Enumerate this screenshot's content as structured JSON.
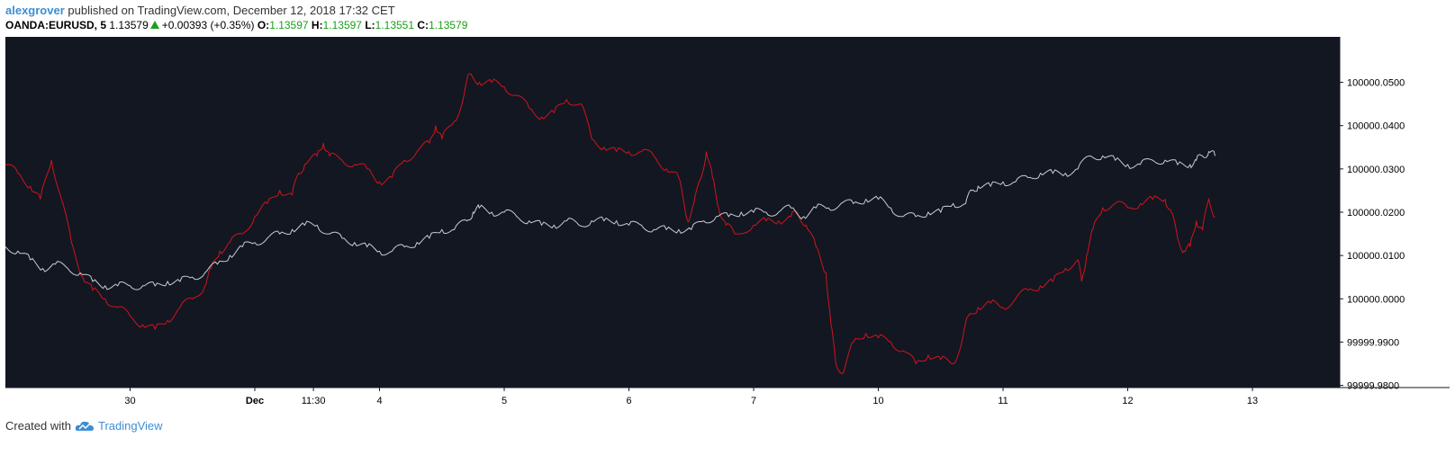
{
  "header": {
    "author": "alexgrover",
    "published_text": "published on TradingView.com, December 12, 2018 17:32 CET",
    "symbol": "OANDA:EURUSD, 5",
    "price": "1.13579",
    "change": "+0.00393 (+0.35%)",
    "o_label": "O:",
    "o_value": "1.13597",
    "h_label": "H:",
    "h_value": "1.13597",
    "l_label": "L:",
    "l_value": "1.13551",
    "c_label": "C:",
    "c_value": "1.13579"
  },
  "footer": {
    "created_with": "Created with",
    "brand": "TradingView",
    "logo_icon": "tradingview-cloud-icon"
  },
  "colors": {
    "background": "#131722",
    "red_series": "#d0141a",
    "gray_series": "#c8ccd4",
    "axis_text": "#000000",
    "up_color": "#1aa01a",
    "brand": "#3c8ed4"
  },
  "chart_data": {
    "type": "line",
    "title": "",
    "xlabel": "",
    "ylabel": "",
    "x_range": [
      -1,
      9.7
    ],
    "ylim": [
      99999.9795,
      100000.0605
    ],
    "x_ticks": [
      {
        "t": 0,
        "label": "30"
      },
      {
        "t": 1,
        "label": "Dec"
      },
      {
        "t": 1.47,
        "label": "11:30"
      },
      {
        "t": 2,
        "label": "4"
      },
      {
        "t": 3,
        "label": "5"
      },
      {
        "t": 4,
        "label": "6"
      },
      {
        "t": 5,
        "label": "7"
      },
      {
        "t": 6,
        "label": "10"
      },
      {
        "t": 7,
        "label": "11"
      },
      {
        "t": 8,
        "label": "12"
      },
      {
        "t": 9,
        "label": "13"
      }
    ],
    "y_ticks": [
      {
        "v": 100000.05,
        "label": "100000.0500"
      },
      {
        "v": 100000.04,
        "label": "100000.0400"
      },
      {
        "v": 100000.03,
        "label": "100000.0300"
      },
      {
        "v": 100000.02,
        "label": "100000.0200"
      },
      {
        "v": 100000.01,
        "label": "100000.0100"
      },
      {
        "v": 100000.0,
        "label": "100000.0000"
      },
      {
        "v": 99999.99,
        "label": "99999.9900"
      },
      {
        "v": 99999.98,
        "label": "99999.9800"
      }
    ],
    "series": [
      {
        "color": "#d0141a",
        "points": [
          [
            -1.0,
            100000.031
          ],
          [
            -0.9,
            100000.029
          ],
          [
            -0.8,
            100000.026
          ],
          [
            -0.72,
            100000.023
          ],
          [
            -0.63,
            100000.032
          ],
          [
            -0.55,
            100000.023
          ],
          [
            -0.47,
            100000.013
          ],
          [
            -0.38,
            100000.005
          ],
          [
            -0.3,
            100000.002
          ],
          [
            -0.2,
            100000.0
          ],
          [
            -0.1,
            99999.998
          ],
          [
            0.0,
            99999.996
          ],
          [
            0.1,
            99999.994
          ],
          [
            0.2,
            99999.993
          ],
          [
            0.3,
            99999.995
          ],
          [
            0.4,
            99999.998
          ],
          [
            0.5,
            100000.0
          ],
          [
            0.6,
            100000.003
          ],
          [
            0.65,
            100000.007
          ],
          [
            0.72,
            100000.011
          ],
          [
            0.8,
            100000.013
          ],
          [
            0.9,
            100000.015
          ],
          [
            1.0,
            100000.019
          ],
          [
            1.1,
            100000.022
          ],
          [
            1.2,
            100000.025
          ],
          [
            1.3,
            100000.024
          ],
          [
            1.35,
            100000.029
          ],
          [
            1.4,
            100000.031
          ],
          [
            1.5,
            100000.033
          ],
          [
            1.55,
            100000.036
          ],
          [
            1.6,
            100000.033
          ],
          [
            1.7,
            100000.032
          ],
          [
            1.8,
            100000.031
          ],
          [
            1.9,
            100000.03
          ],
          [
            2.0,
            100000.027
          ],
          [
            2.1,
            100000.028
          ],
          [
            2.2,
            100000.032
          ],
          [
            2.3,
            100000.034
          ],
          [
            2.4,
            100000.036
          ],
          [
            2.45,
            100000.04
          ],
          [
            2.5,
            100000.037
          ],
          [
            2.6,
            100000.041
          ],
          [
            2.67,
            100000.046
          ],
          [
            2.72,
            100000.052
          ],
          [
            2.8,
            100000.05
          ],
          [
            2.9,
            100000.05
          ],
          [
            3.0,
            100000.049
          ],
          [
            3.1,
            100000.047
          ],
          [
            3.2,
            100000.044
          ],
          [
            3.3,
            100000.042
          ],
          [
            3.4,
            100000.043
          ],
          [
            3.5,
            100000.046
          ],
          [
            3.62,
            100000.045
          ],
          [
            3.7,
            100000.037
          ],
          [
            3.8,
            100000.035
          ],
          [
            3.9,
            100000.034
          ],
          [
            4.0,
            100000.034
          ],
          [
            4.1,
            100000.034
          ],
          [
            4.2,
            100000.033
          ],
          [
            4.3,
            100000.03
          ],
          [
            4.4,
            100000.028
          ],
          [
            4.47,
            100000.018
          ],
          [
            4.52,
            100000.022
          ],
          [
            4.58,
            100000.028
          ],
          [
            4.62,
            100000.034
          ],
          [
            4.67,
            100000.028
          ],
          [
            4.72,
            100000.021
          ],
          [
            4.78,
            100000.017
          ],
          [
            4.85,
            100000.015
          ],
          [
            5.0,
            100000.017
          ],
          [
            5.1,
            100000.018
          ],
          [
            5.2,
            100000.018
          ],
          [
            5.3,
            100000.019
          ],
          [
            5.35,
            100000.02
          ],
          [
            5.42,
            100000.017
          ],
          [
            5.5,
            100000.012
          ],
          [
            5.58,
            100000.006
          ],
          [
            5.62,
            99999.994
          ],
          [
            5.66,
            99999.985
          ],
          [
            5.72,
            99999.983
          ],
          [
            5.8,
            99999.99
          ],
          [
            5.9,
            99999.992
          ],
          [
            6.0,
            99999.991
          ],
          [
            6.1,
            99999.99
          ],
          [
            6.2,
            99999.988
          ],
          [
            6.3,
            99999.985
          ],
          [
            6.4,
            99999.987
          ],
          [
            6.5,
            99999.986
          ],
          [
            6.6,
            99999.985
          ],
          [
            6.67,
            99999.99
          ],
          [
            6.72,
            99999.996
          ],
          [
            6.8,
            99999.998
          ],
          [
            6.9,
            99999.999
          ],
          [
            7.0,
            99999.998
          ],
          [
            7.1,
            100000.0
          ],
          [
            7.2,
            100000.002
          ],
          [
            7.3,
            100000.003
          ],
          [
            7.4,
            100000.004
          ],
          [
            7.5,
            100000.007
          ],
          [
            7.6,
            100000.009
          ],
          [
            7.63,
            100000.004
          ],
          [
            7.67,
            100000.01
          ],
          [
            7.72,
            100000.016
          ],
          [
            7.8,
            100000.021
          ],
          [
            7.9,
            100000.022
          ],
          [
            8.0,
            100000.021
          ],
          [
            8.1,
            100000.022
          ],
          [
            8.2,
            100000.023
          ],
          [
            8.3,
            100000.023
          ],
          [
            8.35,
            100000.02
          ],
          [
            8.4,
            100000.014
          ],
          [
            8.45,
            100000.011
          ],
          [
            8.5,
            100000.012
          ],
          [
            8.55,
            100000.018
          ],
          [
            8.6,
            100000.016
          ],
          [
            8.65,
            100000.023
          ],
          [
            8.7,
            100000.019
          ]
        ]
      },
      {
        "color": "#c8ccd4",
        "points": [
          [
            -1.0,
            100000.012
          ],
          [
            -0.9,
            100000.011
          ],
          [
            -0.8,
            100000.009
          ],
          [
            -0.7,
            100000.007
          ],
          [
            -0.6,
            100000.008
          ],
          [
            -0.5,
            100000.007
          ],
          [
            -0.4,
            100000.006
          ],
          [
            -0.3,
            100000.004
          ],
          [
            -0.2,
            100000.003
          ],
          [
            -0.1,
            100000.003
          ],
          [
            0.0,
            100000.003
          ],
          [
            0.1,
            100000.003
          ],
          [
            0.2,
            100000.003
          ],
          [
            0.3,
            100000.004
          ],
          [
            0.4,
            100000.004
          ],
          [
            0.5,
            100000.005
          ],
          [
            0.6,
            100000.006
          ],
          [
            0.7,
            100000.008
          ],
          [
            0.8,
            100000.01
          ],
          [
            0.9,
            100000.012
          ],
          [
            1.0,
            100000.013
          ],
          [
            1.1,
            100000.014
          ],
          [
            1.2,
            100000.015
          ],
          [
            1.3,
            100000.016
          ],
          [
            1.4,
            100000.017
          ],
          [
            1.5,
            100000.017
          ],
          [
            1.6,
            100000.015
          ],
          [
            1.7,
            100000.014
          ],
          [
            1.8,
            100000.013
          ],
          [
            1.9,
            100000.012
          ],
          [
            2.0,
            100000.011
          ],
          [
            2.1,
            100000.011
          ],
          [
            2.2,
            100000.012
          ],
          [
            2.3,
            100000.013
          ],
          [
            2.4,
            100000.014
          ],
          [
            2.5,
            100000.016
          ],
          [
            2.6,
            100000.016
          ],
          [
            2.7,
            100000.018
          ],
          [
            2.75,
            100000.02
          ],
          [
            2.8,
            100000.021
          ],
          [
            2.9,
            100000.02
          ],
          [
            3.0,
            100000.02
          ],
          [
            3.1,
            100000.019
          ],
          [
            3.2,
            100000.018
          ],
          [
            3.3,
            100000.017
          ],
          [
            3.4,
            100000.017
          ],
          [
            3.5,
            100000.018
          ],
          [
            3.6,
            100000.017
          ],
          [
            3.7,
            100000.018
          ],
          [
            3.8,
            100000.018
          ],
          [
            3.9,
            100000.018
          ],
          [
            4.0,
            100000.017
          ],
          [
            4.1,
            100000.017
          ],
          [
            4.2,
            100000.016
          ],
          [
            4.3,
            100000.016
          ],
          [
            4.4,
            100000.016
          ],
          [
            4.5,
            100000.016
          ],
          [
            4.6,
            100000.018
          ],
          [
            4.7,
            100000.019
          ],
          [
            4.8,
            100000.019
          ],
          [
            4.9,
            100000.02
          ],
          [
            5.0,
            100000.02
          ],
          [
            5.1,
            100000.02
          ],
          [
            5.2,
            100000.02
          ],
          [
            5.3,
            100000.021
          ],
          [
            5.4,
            100000.019
          ],
          [
            5.5,
            100000.021
          ],
          [
            5.6,
            100000.021
          ],
          [
            5.7,
            100000.022
          ],
          [
            5.8,
            100000.022
          ],
          [
            5.9,
            100000.023
          ],
          [
            6.0,
            100000.023
          ],
          [
            6.1,
            100000.021
          ],
          [
            6.2,
            100000.019
          ],
          [
            6.3,
            100000.019
          ],
          [
            6.4,
            100000.02
          ],
          [
            6.5,
            100000.02
          ],
          [
            6.6,
            100000.022
          ],
          [
            6.7,
            100000.022
          ],
          [
            6.75,
            100000.025
          ],
          [
            6.8,
            100000.026
          ],
          [
            6.9,
            100000.026
          ],
          [
            7.0,
            100000.027
          ],
          [
            7.1,
            100000.027
          ],
          [
            7.2,
            100000.028
          ],
          [
            7.3,
            100000.029
          ],
          [
            7.4,
            100000.029
          ],
          [
            7.5,
            100000.029
          ],
          [
            7.6,
            100000.03
          ],
          [
            7.7,
            100000.033
          ],
          [
            7.8,
            100000.033
          ],
          [
            7.9,
            100000.032
          ],
          [
            8.0,
            100000.031
          ],
          [
            8.1,
            100000.031
          ],
          [
            8.2,
            100000.032
          ],
          [
            8.3,
            100000.032
          ],
          [
            8.4,
            100000.031
          ],
          [
            8.5,
            100000.031
          ],
          [
            8.55,
            100000.032
          ],
          [
            8.6,
            100000.033
          ],
          [
            8.65,
            100000.034
          ],
          [
            8.7,
            100000.033
          ]
        ]
      }
    ]
  }
}
